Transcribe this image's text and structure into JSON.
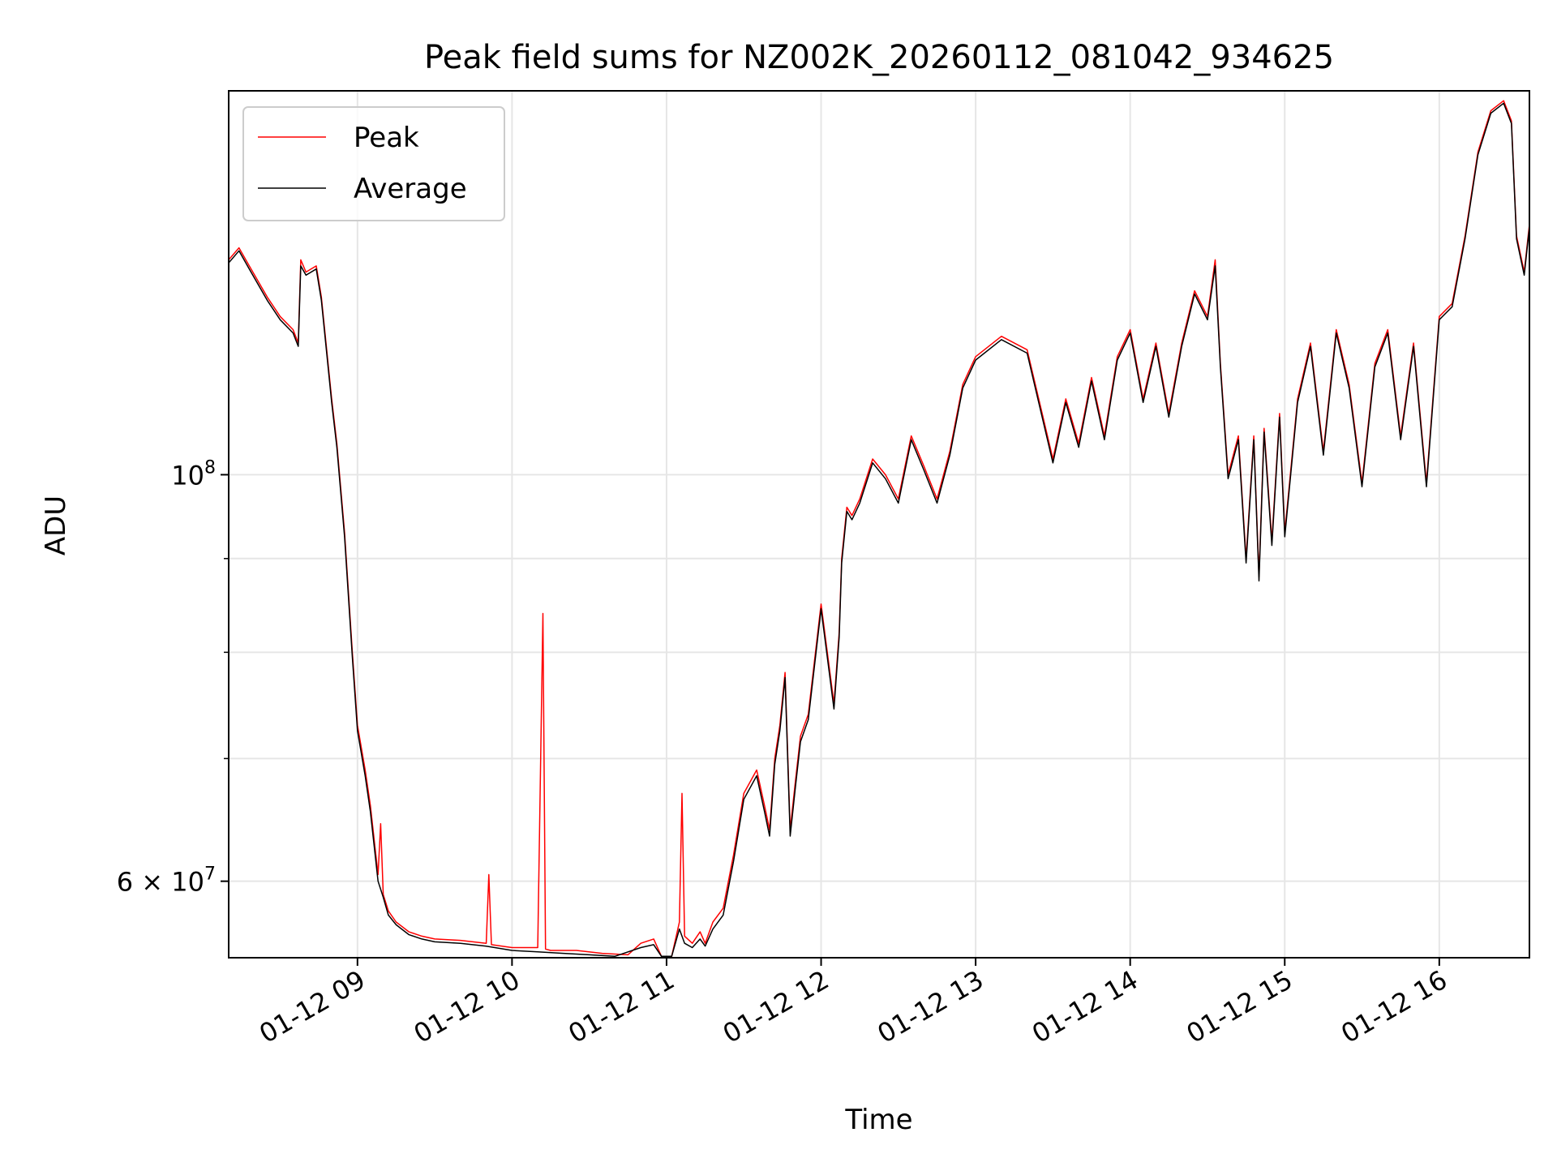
{
  "chart_data": {
    "type": "line",
    "title": "Peak field sums for NZ002K_20260112_081042_934625",
    "xlabel": "Time",
    "ylabel": "ADU",
    "y_scale": "log",
    "grid": true,
    "legend_position": "top-left",
    "xlim": [
      "2026-01-12 08:10",
      "2026-01-12 16:35"
    ],
    "ylim": [
      54500000,
      162000000
    ],
    "x_ticks": [
      {
        "value": "2026-01-12 09:00",
        "label": "01-12 09"
      },
      {
        "value": "2026-01-12 10:00",
        "label": "01-12 10"
      },
      {
        "value": "2026-01-12 11:00",
        "label": "01-12 11"
      },
      {
        "value": "2026-01-12 12:00",
        "label": "01-12 12"
      },
      {
        "value": "2026-01-12 13:00",
        "label": "01-12 13"
      },
      {
        "value": "2026-01-12 14:00",
        "label": "01-12 14"
      },
      {
        "value": "2026-01-12 15:00",
        "label": "01-12 15"
      },
      {
        "value": "2026-01-12 16:00",
        "label": "01-12 16"
      }
    ],
    "y_ticks_major": [
      {
        "value": 60000000,
        "base": "6",
        "exp": "7",
        "label": "6 × 10^7"
      },
      {
        "value": 100000000,
        "base": "",
        "exp": "8",
        "label": "10^8"
      }
    ],
    "y_ticks_minor": [
      70000000,
      80000000,
      90000000
    ],
    "series": [
      {
        "name": "Peak",
        "color": "#ff0000",
        "x": [
          "2026-01-12 08:10",
          "2026-01-12 08:14",
          "2026-01-12 08:18",
          "2026-01-12 08:25",
          "2026-01-12 08:30",
          "2026-01-12 08:35",
          "2026-01-12 08:37",
          "2026-01-12 08:38",
          "2026-01-12 08:40",
          "2026-01-12 08:44",
          "2026-01-12 08:46",
          "2026-01-12 08:50",
          "2026-01-12 08:52",
          "2026-01-12 08:55",
          "2026-01-12 08:58",
          "2026-01-12 09:00",
          "2026-01-12 09:03",
          "2026-01-12 09:05",
          "2026-01-12 09:08",
          "2026-01-12 09:09",
          "2026-01-12 09:10",
          "2026-01-12 09:12",
          "2026-01-12 09:15",
          "2026-01-12 09:20",
          "2026-01-12 09:25",
          "2026-01-12 09:30",
          "2026-01-12 09:40",
          "2026-01-12 09:50",
          "2026-01-12 09:51",
          "2026-01-12 09:52",
          "2026-01-12 10:00",
          "2026-01-12 10:10",
          "2026-01-12 10:12",
          "2026-01-12 10:13",
          "2026-01-12 10:15",
          "2026-01-12 10:25",
          "2026-01-12 10:35",
          "2026-01-12 10:45",
          "2026-01-12 10:50",
          "2026-01-12 10:55",
          "2026-01-12 10:58",
          "2026-01-12 11:02",
          "2026-01-12 11:05",
          "2026-01-12 11:06",
          "2026-01-12 11:07",
          "2026-01-12 11:10",
          "2026-01-12 11:13",
          "2026-01-12 11:15",
          "2026-01-12 11:18",
          "2026-01-12 11:22",
          "2026-01-12 11:26",
          "2026-01-12 11:30",
          "2026-01-12 11:35",
          "2026-01-12 11:38",
          "2026-01-12 11:40",
          "2026-01-12 11:42",
          "2026-01-12 11:44",
          "2026-01-12 11:46",
          "2026-01-12 11:48",
          "2026-01-12 11:50",
          "2026-01-12 11:52",
          "2026-01-12 11:55",
          "2026-01-12 12:00",
          "2026-01-12 12:05",
          "2026-01-12 12:07",
          "2026-01-12 12:08",
          "2026-01-12 12:10",
          "2026-01-12 12:12",
          "2026-01-12 12:15",
          "2026-01-12 12:20",
          "2026-01-12 12:25",
          "2026-01-12 12:30",
          "2026-01-12 12:35",
          "2026-01-12 12:40",
          "2026-01-12 12:45",
          "2026-01-12 12:50",
          "2026-01-12 12:55",
          "2026-01-12 13:00",
          "2026-01-12 13:10",
          "2026-01-12 13:20",
          "2026-01-12 13:30",
          "2026-01-12 13:35",
          "2026-01-12 13:40",
          "2026-01-12 13:45",
          "2026-01-12 13:50",
          "2026-01-12 13:55",
          "2026-01-12 14:00",
          "2026-01-12 14:05",
          "2026-01-12 14:10",
          "2026-01-12 14:15",
          "2026-01-12 14:20",
          "2026-01-12 14:25",
          "2026-01-12 14:30",
          "2026-01-12 14:33",
          "2026-01-12 14:35",
          "2026-01-12 14:38",
          "2026-01-12 14:42",
          "2026-01-12 14:45",
          "2026-01-12 14:48",
          "2026-01-12 14:50",
          "2026-01-12 14:52",
          "2026-01-12 14:55",
          "2026-01-12 14:58",
          "2026-01-12 15:00",
          "2026-01-12 15:05",
          "2026-01-12 15:10",
          "2026-01-12 15:15",
          "2026-01-12 15:20",
          "2026-01-12 15:25",
          "2026-01-12 15:30",
          "2026-01-12 15:35",
          "2026-01-12 15:40",
          "2026-01-12 15:45",
          "2026-01-12 15:50",
          "2026-01-12 15:55",
          "2026-01-12 16:00",
          "2026-01-12 16:05",
          "2026-01-12 16:10",
          "2026-01-12 16:15",
          "2026-01-12 16:20",
          "2026-01-12 16:25",
          "2026-01-12 16:28",
          "2026-01-12 16:30",
          "2026-01-12 16:33",
          "2026-01-12 16:35"
        ],
        "y": [
          131000000,
          133000000,
          130000000,
          125000000,
          122000000,
          120000000,
          118000000,
          131000000,
          129000000,
          130000000,
          125000000,
          110000000,
          104000000,
          93000000,
          80000000,
          73000000,
          69000000,
          66000000,
          60500000,
          64500000,
          59000000,
          57800000,
          57000000,
          56300000,
          56000000,
          55800000,
          55700000,
          55500000,
          60500000,
          55400000,
          55200000,
          55200000,
          84000000,
          55100000,
          55000000,
          55000000,
          54800000,
          54700000,
          55500000,
          55800000,
          54600000,
          54600000,
          57000000,
          67000000,
          56000000,
          55500000,
          56300000,
          55500000,
          57000000,
          58000000,
          62000000,
          67000000,
          69000000,
          66000000,
          64000000,
          70000000,
          73000000,
          78000000,
          64000000,
          68000000,
          72000000,
          74000000,
          85000000,
          75000000,
          82000000,
          90000000,
          96000000,
          95000000,
          97000000,
          102000000,
          100000000,
          97000000,
          105000000,
          101000000,
          97000000,
          103000000,
          112000000,
          116000000,
          119000000,
          117000000,
          102000000,
          110000000,
          104000000,
          113000000,
          105000000,
          116000000,
          120000000,
          110000000,
          118000000,
          108000000,
          118000000,
          126000000,
          122000000,
          131000000,
          115000000,
          100000000,
          105000000,
          90000000,
          105000000,
          88000000,
          106000000,
          92000000,
          108000000,
          93000000,
          110000000,
          118000000,
          103000000,
          120000000,
          112000000,
          99000000,
          115000000,
          120000000,
          105000000,
          118000000,
          99000000,
          122000000,
          124000000,
          135000000,
          150000000,
          158000000,
          160000000,
          156000000,
          135000000,
          129000000,
          137000000
        ]
      },
      {
        "name": "Average",
        "color": "#000000",
        "x": [
          "2026-01-12 08:10",
          "2026-01-12 08:14",
          "2026-01-12 08:18",
          "2026-01-12 08:25",
          "2026-01-12 08:30",
          "2026-01-12 08:35",
          "2026-01-12 08:37",
          "2026-01-12 08:38",
          "2026-01-12 08:40",
          "2026-01-12 08:44",
          "2026-01-12 08:46",
          "2026-01-12 08:50",
          "2026-01-12 08:52",
          "2026-01-12 08:55",
          "2026-01-12 08:58",
          "2026-01-12 09:00",
          "2026-01-12 09:03",
          "2026-01-12 09:05",
          "2026-01-12 09:08",
          "2026-01-12 09:10",
          "2026-01-12 09:12",
          "2026-01-12 09:15",
          "2026-01-12 09:20",
          "2026-01-12 09:25",
          "2026-01-12 09:30",
          "2026-01-12 09:40",
          "2026-01-12 09:50",
          "2026-01-12 10:00",
          "2026-01-12 10:10",
          "2026-01-12 10:20",
          "2026-01-12 10:30",
          "2026-01-12 10:40",
          "2026-01-12 10:50",
          "2026-01-12 10:55",
          "2026-01-12 10:58",
          "2026-01-12 11:02",
          "2026-01-12 11:05",
          "2026-01-12 11:07",
          "2026-01-12 11:10",
          "2026-01-12 11:13",
          "2026-01-12 11:15",
          "2026-01-12 11:18",
          "2026-01-12 11:22",
          "2026-01-12 11:26",
          "2026-01-12 11:30",
          "2026-01-12 11:35",
          "2026-01-12 11:38",
          "2026-01-12 11:40",
          "2026-01-12 11:42",
          "2026-01-12 11:44",
          "2026-01-12 11:46",
          "2026-01-12 11:48",
          "2026-01-12 11:50",
          "2026-01-12 11:52",
          "2026-01-12 11:55",
          "2026-01-12 12:00",
          "2026-01-12 12:05",
          "2026-01-12 12:07",
          "2026-01-12 12:08",
          "2026-01-12 12:10",
          "2026-01-12 12:12",
          "2026-01-12 12:15",
          "2026-01-12 12:20",
          "2026-01-12 12:25",
          "2026-01-12 12:30",
          "2026-01-12 12:35",
          "2026-01-12 12:40",
          "2026-01-12 12:45",
          "2026-01-12 12:50",
          "2026-01-12 12:55",
          "2026-01-12 13:00",
          "2026-01-12 13:10",
          "2026-01-12 13:20",
          "2026-01-12 13:30",
          "2026-01-12 13:35",
          "2026-01-12 13:40",
          "2026-01-12 13:45",
          "2026-01-12 13:50",
          "2026-01-12 13:55",
          "2026-01-12 14:00",
          "2026-01-12 14:05",
          "2026-01-12 14:10",
          "2026-01-12 14:15",
          "2026-01-12 14:20",
          "2026-01-12 14:25",
          "2026-01-12 14:30",
          "2026-01-12 14:33",
          "2026-01-12 14:35",
          "2026-01-12 14:38",
          "2026-01-12 14:42",
          "2026-01-12 14:45",
          "2026-01-12 14:48",
          "2026-01-12 14:50",
          "2026-01-12 14:52",
          "2026-01-12 14:55",
          "2026-01-12 14:58",
          "2026-01-12 15:00",
          "2026-01-12 15:05",
          "2026-01-12 15:10",
          "2026-01-12 15:15",
          "2026-01-12 15:20",
          "2026-01-12 15:25",
          "2026-01-12 15:30",
          "2026-01-12 15:35",
          "2026-01-12 15:40",
          "2026-01-12 15:45",
          "2026-01-12 15:50",
          "2026-01-12 15:55",
          "2026-01-12 16:00",
          "2026-01-12 16:05",
          "2026-01-12 16:10",
          "2026-01-12 16:15",
          "2026-01-12 16:20",
          "2026-01-12 16:25",
          "2026-01-12 16:28",
          "2026-01-12 16:30",
          "2026-01-12 16:33",
          "2026-01-12 16:35"
        ],
        "y": [
          130500000,
          132500000,
          129500000,
          124500000,
          121500000,
          119500000,
          117500000,
          130000000,
          128500000,
          129500000,
          124500000,
          109500000,
          103500000,
          92500000,
          79500000,
          72500000,
          68500000,
          65500000,
          60000000,
          58800000,
          57500000,
          56800000,
          56100000,
          55800000,
          55600000,
          55500000,
          55300000,
          55000000,
          54900000,
          54800000,
          54700000,
          54600000,
          55200000,
          55400000,
          54600000,
          54600000,
          56500000,
          55500000,
          55200000,
          55800000,
          55300000,
          56500000,
          57500000,
          61500000,
          66500000,
          68500000,
          65500000,
          63500000,
          69500000,
          72500000,
          77500000,
          63500000,
          67500000,
          71500000,
          73500000,
          84500000,
          74500000,
          81500000,
          89500000,
          95500000,
          94500000,
          96500000,
          101500000,
          99500000,
          96500000,
          104500000,
          100500000,
          96500000,
          102500000,
          111500000,
          115500000,
          118500000,
          116500000,
          101500000,
          109500000,
          103500000,
          112500000,
          104500000,
          115500000,
          119500000,
          109500000,
          117500000,
          107500000,
          117500000,
          125500000,
          121500000,
          130000000,
          114500000,
          99500000,
          104500000,
          89500000,
          104500000,
          87500000,
          105500000,
          91500000,
          107500000,
          92500000,
          109500000,
          117500000,
          102500000,
          119500000,
          111500000,
          98500000,
          114500000,
          119500000,
          104500000,
          117500000,
          98500000,
          121500000,
          123500000,
          134500000,
          149500000,
          157500000,
          159500000,
          155500000,
          134500000,
          128500000,
          136500000
        ]
      }
    ]
  }
}
